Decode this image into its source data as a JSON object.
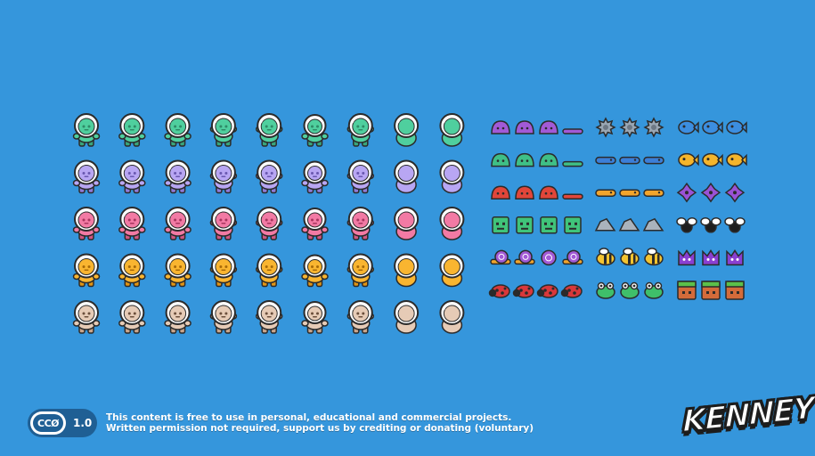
{
  "background_color": "#3596dc",
  "astronaut_grid": {
    "rows": [
      {
        "color": "green",
        "body": "#4fcf9e",
        "shade": "#39a57c",
        "face": "#2f8a67"
      },
      {
        "color": "purple",
        "body": "#b8a6f3",
        "shade": "#8f7bd6",
        "face": "#6a58b0"
      },
      {
        "color": "pink",
        "body": "#f27aa4",
        "shade": "#d05682",
        "face": "#a8365f"
      },
      {
        "color": "yellow",
        "body": "#f9b530",
        "shade": "#e09414",
        "face": "#a86a08"
      },
      {
        "color": "beige",
        "body": "#e6cbb6",
        "shade": "#c9a48a",
        "face": "#6b4f3c"
      }
    ],
    "poses": [
      "stand",
      "walk-1",
      "walk-2",
      "climb-1",
      "climb-2",
      "duck",
      "jump",
      "hurt",
      "front"
    ]
  },
  "enemy_sheet": {
    "columns": [
      {
        "name": "left-column",
        "rows": [
          {
            "enemy": "slime-purple",
            "color": "#a25ad6",
            "frames": [
              "slime",
              "slime",
              "slime",
              "flat"
            ]
          },
          {
            "enemy": "slime-spike",
            "color": "#3fbf86",
            "frames": [
              "slime",
              "slime",
              "slime",
              "flat"
            ]
          },
          {
            "enemy": "slime-fire",
            "color": "#e1463a",
            "frames": [
              "slime",
              "slime",
              "slime",
              "flat"
            ]
          },
          {
            "enemy": "block",
            "color": "#40c47a",
            "frames": [
              "block",
              "block",
              "block",
              "block"
            ]
          },
          {
            "enemy": "snail",
            "color": "#f2a52c",
            "frames": [
              "snail",
              "snail",
              "shell",
              "snail"
            ]
          },
          {
            "enemy": "ladybug",
            "color": "#d9383a",
            "frames": [
              "bug",
              "bug",
              "bug",
              "bug"
            ]
          }
        ]
      },
      {
        "name": "middle-column",
        "rows": [
          {
            "enemy": "saw",
            "color": "#9aa7b4",
            "frames": [
              "saw",
              "saw",
              "saw"
            ]
          },
          {
            "enemy": "worm-blue",
            "color": "#3c7fd8",
            "frames": [
              "worm",
              "worm",
              "worm"
            ]
          },
          {
            "enemy": "worm-yellow",
            "color": "#f2a52c",
            "frames": [
              "worm",
              "worm",
              "worm"
            ]
          },
          {
            "enemy": "barnacle",
            "color": "#aab3bc",
            "frames": [
              "rock",
              "rock",
              "rock"
            ]
          },
          {
            "enemy": "bee",
            "color": "#f4c431",
            "frames": [
              "bee",
              "bee",
              "bee"
            ]
          },
          {
            "enemy": "frog",
            "color": "#3fbf6a",
            "frames": [
              "frog",
              "frog",
              "frog"
            ]
          }
        ]
      },
      {
        "name": "right-column",
        "rows": [
          {
            "enemy": "fish-blue",
            "color": "#3c8ee0",
            "frames": [
              "fish",
              "fish",
              "fish"
            ]
          },
          {
            "enemy": "fish-yellow",
            "color": "#f4b52c",
            "frames": [
              "fish",
              "fish",
              "fish"
            ]
          },
          {
            "enemy": "spore",
            "color": "#9a52d6",
            "frames": [
              "spore",
              "spore",
              "spore"
            ]
          },
          {
            "enemy": "fly",
            "color": "#1d1d1d",
            "frames": [
              "fly",
              "fly",
              "fly"
            ]
          },
          {
            "enemy": "mouse",
            "color": "#8a3fd1",
            "frames": [
              "mouse",
              "mouse",
              "mouse"
            ]
          },
          {
            "enemy": "grass-block",
            "color": "#d36b3a",
            "frames": [
              "crate",
              "crate",
              "crate"
            ]
          }
        ]
      }
    ]
  },
  "license": {
    "cc_label": "CCØ",
    "version": "1.0",
    "line1": "This content is free to use in personal, educational and commercial projects.",
    "line2": "Written permission not required, support us by crediting or donating (voluntary)"
  },
  "logo": {
    "text": "KENNEY"
  }
}
